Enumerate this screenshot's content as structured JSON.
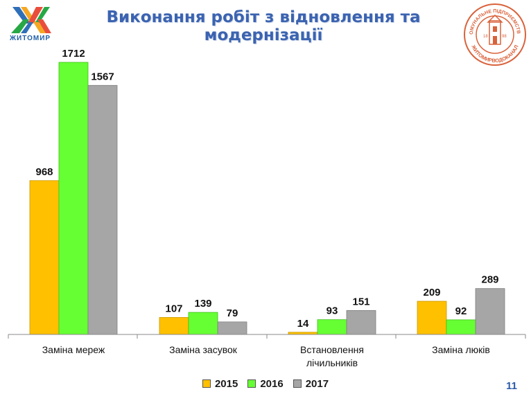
{
  "header": {
    "city_logo_text": "ЖИТОМИР",
    "title_line1": "Виконання робіт з відновлення та",
    "title_line2": "модернізації",
    "seal": {
      "top_text": "КОМУНАЛЬНЕ ПІДПРИЄМСТВО",
      "bottom_text": "ЖИТОМИРВОДОКАНАЛ",
      "year_left": "18",
      "year_right": "98"
    }
  },
  "page_number": "11",
  "colors": {
    "2015": "#ffc000",
    "2016": "#66ff33",
    "2017": "#a6a6a6",
    "title": "#3b63b0"
  },
  "chart_data": {
    "type": "bar",
    "title": "Виконання робіт з відновлення та модернізації",
    "categories": [
      [
        "Заміна мереж"
      ],
      [
        "Заміна засувок"
      ],
      [
        "Встановлення",
        "лічильників"
      ],
      [
        "Заміна люків"
      ]
    ],
    "series": [
      {
        "name": "2015",
        "values": [
          968,
          107,
          14,
          209
        ]
      },
      {
        "name": "2016",
        "values": [
          1712,
          139,
          93,
          92
        ]
      },
      {
        "name": "2017",
        "values": [
          1567,
          79,
          151,
          289
        ]
      }
    ],
    "ylim": [
      0,
      1800
    ],
    "grid": false,
    "legend_position": "bottom"
  }
}
